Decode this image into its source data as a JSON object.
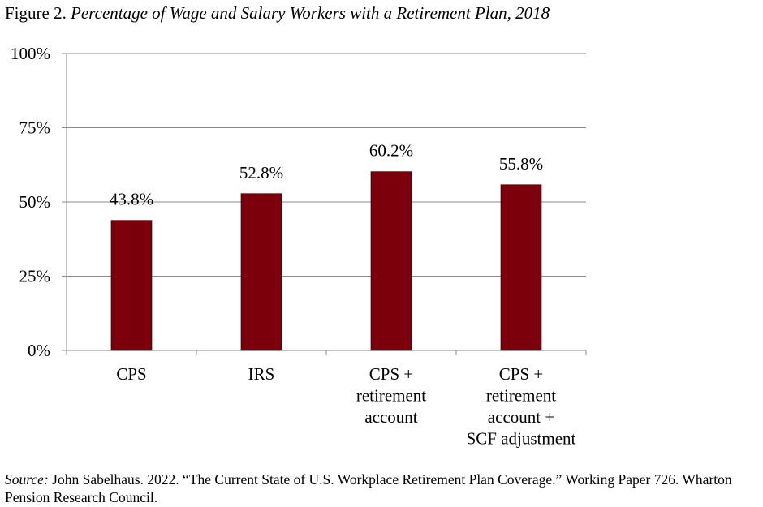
{
  "figure": {
    "label": "Figure 2.",
    "title": "Percentage of Wage and Salary Workers with a Retirement Plan, 2018"
  },
  "source": {
    "label": "Source:",
    "text": "John Sabelhaus. 2022. “The Current State of U.S. Workplace Retirement Plan Coverage.” Working Paper 726. Wharton Pension Research Council."
  },
  "colors": {
    "bar": "#7b000b",
    "grid": "#8a8a8a",
    "axis": "#8a8a8a"
  },
  "chart_data": {
    "type": "bar",
    "categories": [
      [
        "CPS"
      ],
      [
        "IRS"
      ],
      [
        "CPS +",
        "retirement",
        "account"
      ],
      [
        "CPS +",
        "retirement",
        "account +",
        "SCF adjustment"
      ]
    ],
    "values": [
      43.8,
      52.8,
      60.2,
      55.8
    ],
    "data_labels": [
      "43.8%",
      "52.8%",
      "60.2%",
      "55.8%"
    ],
    "yticks": [
      0,
      25,
      50,
      75,
      100
    ],
    "ytick_labels": [
      "0%",
      "25%",
      "50%",
      "75%",
      "100%"
    ],
    "ylim": [
      0,
      100
    ],
    "grid": true,
    "legend": "none"
  }
}
